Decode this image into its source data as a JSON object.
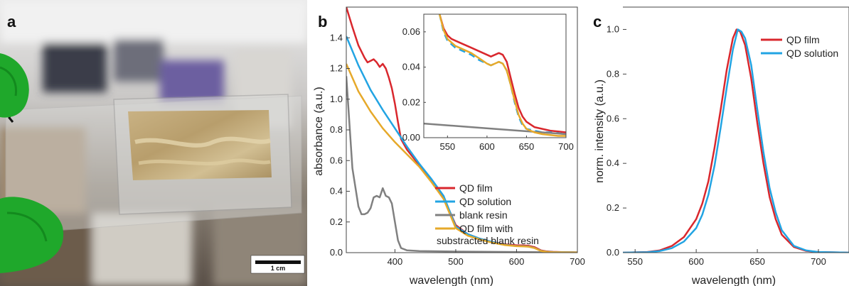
{
  "panel_labels": {
    "a": "a",
    "b": "b",
    "c": "c"
  },
  "photo": {
    "scale_bar_label": "1 cm"
  },
  "colors": {
    "qd_film": "#d9272d",
    "qd_solution": "#22a4e3",
    "blank_resin": "#808080",
    "qd_film_sub": "#e6a92a"
  },
  "chart_data": [
    {
      "id": "b",
      "type": "line",
      "xlabel": "wavelength (nm)",
      "ylabel": "absorbance (a.u.)",
      "xlim": [
        320,
        700
      ],
      "ylim": [
        0,
        1.6
      ],
      "xticks": [
        400,
        500,
        600,
        700
      ],
      "yticks": [
        0.0,
        0.2,
        0.4,
        0.6,
        0.8,
        1.0,
        1.2,
        1.4
      ],
      "grid": false,
      "legend_position": "bottom-right",
      "series": [
        {
          "name": "QD film",
          "color": "#d9272d",
          "x": [
            320,
            330,
            340,
            350,
            355,
            360,
            365,
            370,
            375,
            380,
            385,
            390,
            395,
            400,
            405,
            410,
            420,
            440,
            460,
            480,
            500,
            520,
            540,
            560,
            580,
            600,
            610,
            620,
            630,
            640,
            650,
            660,
            680,
            700
          ],
          "y": [
            1.6,
            1.47,
            1.35,
            1.27,
            1.24,
            1.25,
            1.26,
            1.24,
            1.21,
            1.23,
            1.2,
            1.14,
            1.07,
            0.97,
            0.85,
            0.74,
            0.67,
            0.57,
            0.47,
            0.36,
            0.18,
            0.12,
            0.09,
            0.07,
            0.055,
            0.048,
            0.047,
            0.045,
            0.035,
            0.015,
            0.008,
            0.005,
            0.003,
            0.002
          ]
        },
        {
          "name": "QD solution",
          "color": "#22a4e3",
          "x": [
            320,
            340,
            360,
            380,
            400,
            420,
            440,
            460,
            480,
            500,
            520,
            540,
            560,
            580,
            600,
            610,
            620,
            630,
            640,
            650,
            660,
            680,
            700
          ],
          "y": [
            1.41,
            1.22,
            1.06,
            0.93,
            0.81,
            0.69,
            0.58,
            0.48,
            0.37,
            0.17,
            0.12,
            0.09,
            0.07,
            0.052,
            0.043,
            0.042,
            0.04,
            0.03,
            0.012,
            0.006,
            0.004,
            0.003,
            0.002
          ]
        },
        {
          "name": "blank resin",
          "color": "#808080",
          "x": [
            320,
            330,
            340,
            345,
            350,
            355,
            360,
            365,
            370,
            375,
            380,
            385,
            390,
            395,
            400,
            405,
            410,
            420,
            440,
            500,
            600,
            700
          ],
          "y": [
            1.15,
            0.55,
            0.3,
            0.25,
            0.25,
            0.26,
            0.29,
            0.36,
            0.37,
            0.36,
            0.42,
            0.37,
            0.36,
            0.32,
            0.2,
            0.08,
            0.03,
            0.015,
            0.01,
            0.007,
            0.004,
            0.002
          ]
        },
        {
          "name": "QD film with substracted blank resin",
          "color": "#e6a92a",
          "x": [
            320,
            340,
            360,
            380,
            400,
            420,
            440,
            460,
            480,
            500,
            520,
            540,
            560,
            580,
            600,
            610,
            620,
            630,
            640,
            650,
            660,
            680,
            700
          ],
          "y": [
            1.23,
            1.05,
            0.92,
            0.81,
            0.72,
            0.64,
            0.56,
            0.46,
            0.35,
            0.16,
            0.11,
            0.085,
            0.065,
            0.05,
            0.042,
            0.041,
            0.039,
            0.029,
            0.011,
            0.005,
            0.003,
            0.002,
            0.001
          ]
        }
      ]
    },
    {
      "id": "b-inset",
      "type": "line",
      "xlim": [
        520,
        700
      ],
      "ylim": [
        0,
        0.07
      ],
      "xticks": [
        550,
        600,
        650,
        700
      ],
      "yticks": [
        0.0,
        0.02,
        0.04,
        0.06
      ],
      "yticklabels": [
        "0.00",
        "0.02",
        "0.04",
        "0.06"
      ],
      "series": [
        {
          "name": "QD film",
          "color": "#d9272d",
          "x": [
            540,
            545,
            550,
            555,
            560,
            570,
            580,
            590,
            600,
            605,
            610,
            615,
            620,
            625,
            630,
            635,
            640,
            645,
            650,
            660,
            670,
            680,
            690,
            700
          ],
          "y": [
            0.07,
            0.062,
            0.058,
            0.056,
            0.055,
            0.053,
            0.051,
            0.049,
            0.047,
            0.046,
            0.047,
            0.048,
            0.047,
            0.043,
            0.034,
            0.025,
            0.017,
            0.012,
            0.009,
            0.006,
            0.005,
            0.004,
            0.0035,
            0.003
          ]
        },
        {
          "name": "QD solution",
          "color": "#22a4e3",
          "dash": true,
          "x": [
            540,
            545,
            550,
            555,
            560,
            570,
            580,
            590,
            600,
            605,
            610,
            615,
            620,
            625,
            630,
            635,
            640,
            645,
            650,
            660,
            670,
            680,
            690,
            700
          ],
          "y": [
            0.07,
            0.06,
            0.055,
            0.053,
            0.051,
            0.049,
            0.047,
            0.044,
            0.042,
            0.041,
            0.042,
            0.043,
            0.042,
            0.038,
            0.03,
            0.02,
            0.012,
            0.007,
            0.005,
            0.004,
            0.003,
            0.003,
            0.0025,
            0.002
          ]
        },
        {
          "name": "blank resin",
          "color": "#808080",
          "x": [
            520,
            550,
            580,
            610,
            640,
            670,
            700
          ],
          "y": [
            0.008,
            0.007,
            0.006,
            0.005,
            0.004,
            0.003,
            0.002
          ]
        },
        {
          "name": "QD film with substracted blank resin",
          "color": "#e6a92a",
          "x": [
            540,
            545,
            550,
            555,
            560,
            570,
            580,
            590,
            600,
            605,
            610,
            615,
            620,
            625,
            630,
            635,
            640,
            645,
            650,
            660,
            670,
            680,
            690,
            700
          ],
          "y": [
            0.07,
            0.061,
            0.056,
            0.054,
            0.052,
            0.05,
            0.048,
            0.045,
            0.042,
            0.041,
            0.042,
            0.043,
            0.042,
            0.038,
            0.03,
            0.021,
            0.013,
            0.008,
            0.005,
            0.003,
            0.002,
            0.0015,
            0.001,
            0.001
          ]
        }
      ]
    },
    {
      "id": "c",
      "type": "line",
      "xlabel": "wavelength (nm)",
      "ylabel": "norm. intensity (a.u.)",
      "xlim": [
        540,
        725
      ],
      "ylim": [
        0,
        1.1
      ],
      "xticks": [
        550,
        600,
        650,
        700
      ],
      "yticks": [
        0.0,
        0.2,
        0.4,
        0.6,
        0.8,
        1.0
      ],
      "grid": false,
      "legend_position": "top-right",
      "series": [
        {
          "name": "QD film",
          "color": "#d9272d",
          "x": [
            540,
            560,
            570,
            580,
            590,
            600,
            605,
            610,
            615,
            620,
            625,
            630,
            633,
            636,
            640,
            645,
            650,
            655,
            660,
            665,
            670,
            680,
            690,
            700,
            725
          ],
          "y": [
            0,
            0.003,
            0.01,
            0.03,
            0.07,
            0.15,
            0.22,
            0.32,
            0.47,
            0.64,
            0.82,
            0.96,
            1.0,
            0.99,
            0.93,
            0.78,
            0.58,
            0.4,
            0.25,
            0.15,
            0.08,
            0.025,
            0.008,
            0.003,
            0
          ]
        },
        {
          "name": "QD solution",
          "color": "#22a4e3",
          "x": [
            540,
            560,
            570,
            580,
            590,
            600,
            605,
            610,
            615,
            620,
            625,
            630,
            634,
            637,
            640,
            645,
            650,
            655,
            660,
            665,
            670,
            680,
            690,
            700,
            725
          ],
          "y": [
            0,
            0.002,
            0.007,
            0.02,
            0.05,
            0.11,
            0.17,
            0.26,
            0.39,
            0.56,
            0.74,
            0.91,
            1.0,
            0.99,
            0.96,
            0.84,
            0.64,
            0.45,
            0.29,
            0.18,
            0.1,
            0.03,
            0.01,
            0.003,
            0
          ]
        }
      ]
    }
  ]
}
